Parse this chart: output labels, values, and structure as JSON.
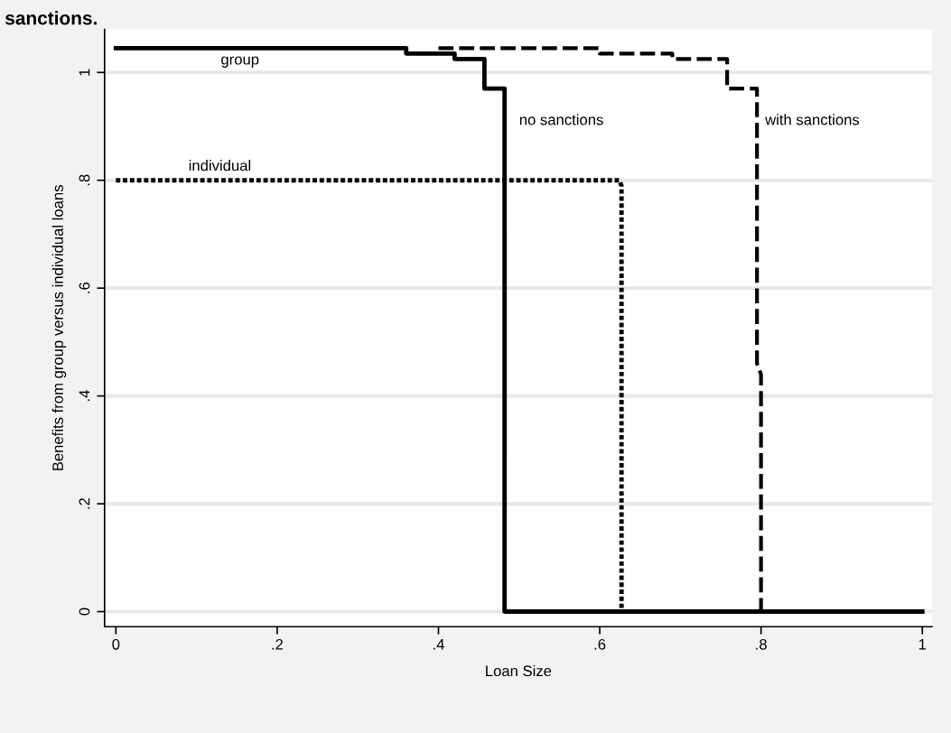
{
  "chart_data": {
    "type": "line",
    "title": "sanctions.",
    "xlabel": "Loan Size",
    "ylabel": "Benefits from group versus individual loans",
    "series": [
      {
        "color": "#000000",
        "line_style": "solid",
        "x": [
          0,
          0.36,
          0.36,
          0.42,
          0.42,
          0.457,
          0.457,
          0.482,
          0.482,
          1.0
        ],
        "values": [
          1.045,
          1.045,
          1.035,
          1.035,
          1.025,
          1.025,
          0.97,
          0.97,
          0,
          0
        ]
      },
      {
        "color": "#000000",
        "line_style": "dashed",
        "x": [
          0.4,
          0.6,
          0.6,
          0.69,
          0.69,
          0.758,
          0.758,
          0.795,
          0.795,
          0.8,
          0.8
        ],
        "values": [
          1.045,
          1.045,
          1.035,
          1.035,
          1.025,
          1.025,
          0.97,
          0.97,
          0.46,
          0.44,
          0
        ]
      },
      {
        "color": "#000000",
        "line_style": "dotted",
        "x": [
          0,
          0.624,
          0.627,
          0.627
        ],
        "values": [
          0.8,
          0.8,
          0.79,
          0
        ]
      }
    ],
    "annotations": [
      "group",
      "individual",
      "no sanctions",
      "with sanctions"
    ],
    "xlim": [
      -0.014,
      1.012
    ],
    "ylim": [
      -0.028,
      1.08
    ],
    "xticks": [
      0,
      {
        "value": 0.2,
        "label": ".2"
      },
      {
        "value": 0.4,
        "label": ".4"
      },
      {
        "value": 0.6,
        "label": ".6"
      },
      {
        "value": 0.8,
        "label": ".8"
      },
      1
    ],
    "yticks": [
      0,
      {
        "value": 0.2,
        "label": ".2"
      },
      {
        "value": 0.4,
        "label": ".4"
      },
      {
        "value": 0.6,
        "label": ".6"
      },
      {
        "value": 0.8,
        "label": ".8"
      },
      1
    ],
    "grid": "y",
    "marker": "none"
  }
}
